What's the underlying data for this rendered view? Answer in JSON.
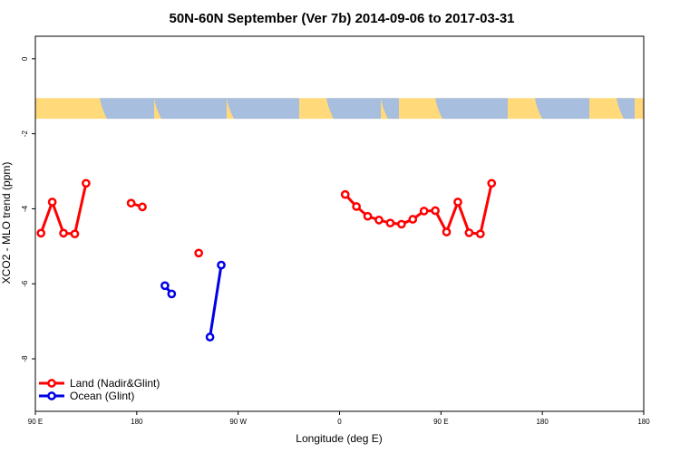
{
  "chart_data": {
    "type": "line",
    "title": "50N-60N September (Ver 7b)   2014-09-06 to 2017-03-31",
    "xlabel": "Longitude (deg E)",
    "ylabel": "XCO2 - MLO trend (ppm)",
    "xlim": [
      -90,
      180
    ],
    "ylim": [
      -9.4,
      0.6
    ],
    "y_ticks": [
      0,
      -2,
      -4,
      -6,
      -8
    ],
    "x_ticks": [
      {
        "value": -90,
        "label": "90 E"
      },
      {
        "value": -45,
        "label": "180"
      },
      {
        "value": 0,
        "label": "90 W"
      },
      {
        "value": 45,
        "label": "0"
      },
      {
        "value": 90,
        "label": "90 E"
      },
      {
        "value": 135,
        "label": "180"
      }
    ],
    "map_band": {
      "y_top": -1.05,
      "y_bottom": -1.6,
      "land_color": "#FFD97A",
      "ocean_color": "#A7BEDE"
    },
    "series": [
      {
        "name": "Land (Nadir&Glint)",
        "color": "#FF0000",
        "segments": [
          [
            [
              -87.5,
              -4.65
            ],
            [
              -82.5,
              -3.82
            ],
            [
              -77.5,
              -4.65
            ],
            [
              -72.5,
              -4.67
            ],
            [
              -67.5,
              -3.32
            ]
          ],
          [
            [
              -47.5,
              -3.85
            ],
            [
              -42.5,
              -3.95
            ]
          ],
          [
            [
              -17.5,
              -5.18
            ]
          ],
          [
            [
              47.5,
              -3.62
            ],
            [
              52.5,
              -3.94
            ],
            [
              57.5,
              -4.2
            ],
            [
              62.5,
              -4.3
            ],
            [
              67.5,
              -4.38
            ],
            [
              72.5,
              -4.41
            ],
            [
              77.5,
              -4.28
            ],
            [
              82.5,
              -4.06
            ],
            [
              87.5,
              -4.05
            ],
            [
              92.5,
              -4.62
            ],
            [
              97.5,
              -3.82
            ],
            [
              102.5,
              -4.64
            ],
            [
              107.5,
              -4.67
            ],
            [
              112.5,
              -3.32
            ]
          ]
        ]
      },
      {
        "name": "Ocean (Glint)",
        "color": "#0000E6",
        "segments": [
          [
            [
              -32.5,
              -6.05
            ],
            [
              -29.5,
              -6.27
            ]
          ],
          [
            [
              -12.5,
              -7.42
            ],
            [
              -7.5,
              -5.5
            ]
          ]
        ]
      }
    ],
    "legend_position": "bottom-left"
  }
}
